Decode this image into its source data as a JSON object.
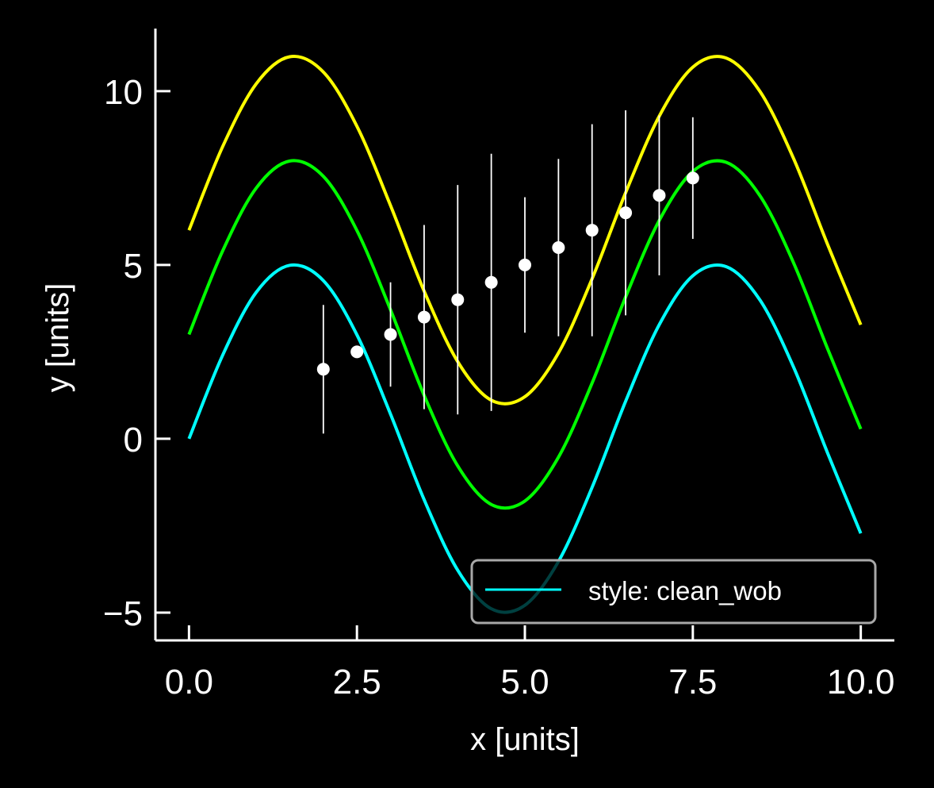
{
  "chart_data": {
    "type": "line",
    "xlabel": "x [units]",
    "ylabel": "y [units]",
    "xlim": [
      -0.5,
      10.5
    ],
    "ylim": [
      -5.8,
      11.8
    ],
    "xticks": [
      0.0,
      2.5,
      5.0,
      7.5,
      10.0
    ],
    "xtick_labels": [
      "0.0",
      "2.5",
      "5.0",
      "7.5",
      "10.0"
    ],
    "yticks": [
      -5,
      0,
      5,
      10
    ],
    "ytick_labels": [
      "−5",
      "0",
      "5",
      "10"
    ],
    "grid": false,
    "legend_position": "lower-right",
    "background": "#000000",
    "foreground": "#ffffff",
    "series": [
      {
        "name": "style: clean_wob",
        "kind": "line",
        "color": "#00ffff",
        "x": [
          0,
          0.5,
          1,
          1.5,
          2,
          2.5,
          3,
          3.5,
          4,
          4.5,
          5,
          5.5,
          6,
          6.5,
          7,
          7.5,
          8,
          8.5,
          9,
          9.5,
          10
        ],
        "y": [
          0,
          2.4,
          4.21,
          4.99,
          4.55,
          2.99,
          0.71,
          -1.75,
          -3.78,
          -4.89,
          -4.79,
          -3.53,
          -1.4,
          1.08,
          3.28,
          4.69,
          4.95,
          3.99,
          2.06,
          -0.38,
          -2.72
        ]
      },
      {
        "kind": "line",
        "color": "#00ff00",
        "x": [
          0,
          0.5,
          1,
          1.5,
          2,
          2.5,
          3,
          3.5,
          4,
          4.5,
          5,
          5.5,
          6,
          6.5,
          7,
          7.5,
          8,
          8.5,
          9,
          9.5,
          10
        ],
        "y": [
          3,
          5.4,
          7.21,
          7.99,
          7.55,
          5.99,
          3.71,
          1.25,
          -0.78,
          -1.89,
          -1.79,
          -0.53,
          1.6,
          4.08,
          6.28,
          7.69,
          7.95,
          6.99,
          5.06,
          2.62,
          0.28
        ]
      },
      {
        "kind": "line",
        "color": "#ffff00",
        "x": [
          0,
          0.5,
          1,
          1.5,
          2,
          2.5,
          3,
          3.5,
          4,
          4.5,
          5,
          5.5,
          6,
          6.5,
          7,
          7.5,
          8,
          8.5,
          9,
          9.5,
          10
        ],
        "y": [
          6,
          8.4,
          10.21,
          10.99,
          10.55,
          8.99,
          6.71,
          4.25,
          2.22,
          1.11,
          1.21,
          2.47,
          4.6,
          7.08,
          9.28,
          10.69,
          10.95,
          9.99,
          8.06,
          5.62,
          3.28
        ]
      },
      {
        "kind": "errorbar",
        "color": "#ffffff",
        "x": [
          2,
          2.5,
          3,
          3.5,
          4,
          4.5,
          5,
          5.5,
          6,
          6.5,
          7,
          7.5
        ],
        "y": [
          2,
          2.5,
          3,
          3.5,
          4,
          4.5,
          5,
          5.5,
          6,
          6.5,
          7,
          7.5
        ],
        "yerr": [
          1.85,
          0,
          1.5,
          2.65,
          3.3,
          3.7,
          1.95,
          2.55,
          3.05,
          2.95,
          2.3,
          1.75
        ]
      }
    ]
  }
}
